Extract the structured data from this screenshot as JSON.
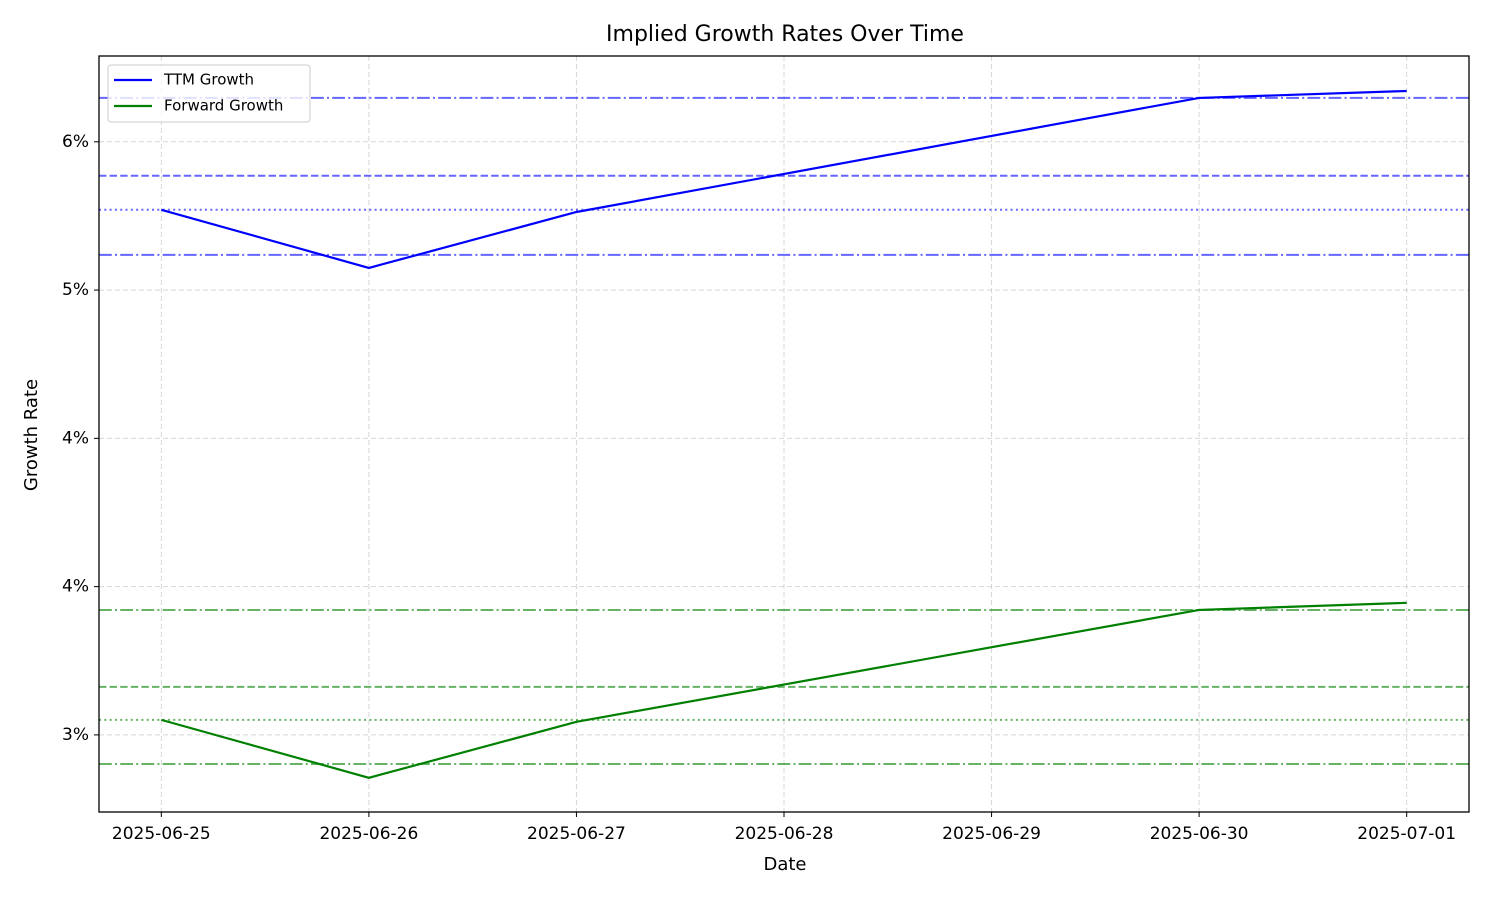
{
  "chart_data": {
    "type": "line",
    "title": "Implied Growth Rates Over Time",
    "x_label": "Date",
    "y_label": "Growth Rate",
    "x": [
      "2025-06-25",
      "2025-06-26",
      "2025-06-27",
      "2025-06-30",
      "2025-07-01"
    ],
    "xticks": [
      "2025-06-25",
      "2025-06-26",
      "2025-06-27",
      "2025-06-28",
      "2025-06-29",
      "2025-06-30",
      "2025-07-01"
    ],
    "series": [
      {
        "name": "TTM Growth",
        "color": "#0000ff",
        "values": [
          5.656,
          5.362,
          5.645,
          6.222,
          6.257
        ]
      },
      {
        "name": "Forward Growth",
        "color": "#008000",
        "values": [
          3.076,
          2.783,
          3.066,
          3.632,
          3.668
        ]
      }
    ],
    "reference_lines": [
      {
        "value": 6.222,
        "color": "#0000ff",
        "style": "dashdot"
      },
      {
        "value": 5.828,
        "color": "#0000ff",
        "style": "dashed"
      },
      {
        "value": 5.656,
        "color": "#0000ff",
        "style": "dotted"
      },
      {
        "value": 5.428,
        "color": "#0000ff",
        "style": "dashdot"
      },
      {
        "value": 3.632,
        "color": "#008000",
        "style": "dashdot"
      },
      {
        "value": 3.243,
        "color": "#008000",
        "style": "dashed"
      },
      {
        "value": 3.076,
        "color": "#008000",
        "style": "dotted"
      },
      {
        "value": 2.853,
        "color": "#008000",
        "style": "dashdot"
      }
    ],
    "ylim": [
      2.61,
      6.434
    ],
    "yticks": [
      {
        "value": 3,
        "label": "3%"
      },
      {
        "value": 3.75,
        "label": "4%"
      },
      {
        "value": 4.5,
        "label": "4%"
      },
      {
        "value": 5.25,
        "label": "5%"
      },
      {
        "value": 6,
        "label": "6%"
      }
    ],
    "grid": true,
    "legend": "upper-left"
  }
}
